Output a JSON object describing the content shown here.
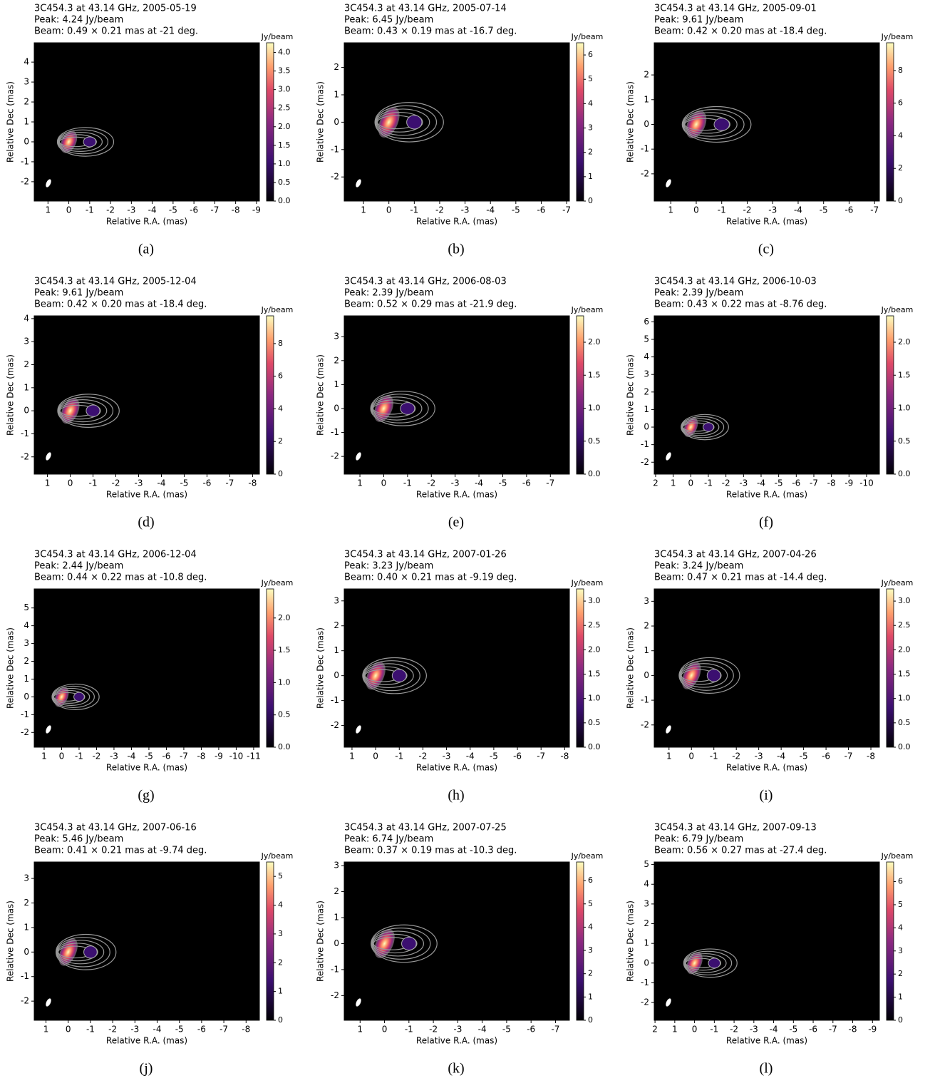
{
  "chart_data": [
    {
      "type": "image",
      "title": "3C454.3 at 43.14 GHz, 2005-05-19",
      "subtitle": "Peak: 4.24 Jy/beam",
      "beam": "Beam: 0.49 × 0.21 mas at -21 deg.",
      "caption": "(a)",
      "xlabel": "Relative R.A. (mas)",
      "ylabel": "Relative Dec (mas)",
      "xlim": [
        1.66,
        -9.14
      ],
      "ylim": [
        -2.97,
        4.97
      ],
      "xticks": [
        1,
        0,
        -1,
        -2,
        -3,
        -4,
        -5,
        -6,
        -7,
        -8,
        -9
      ],
      "yticks": [
        -2,
        -1,
        0,
        1,
        2,
        3,
        4
      ],
      "colorbar": {
        "label": "Jy/beam",
        "lim": [
          0,
          4.26
        ],
        "ticks": [
          {
            "value": 0,
            "label": "0.0"
          },
          0.5,
          {
            "value": 1,
            "label": "1.0"
          },
          1.5,
          {
            "value": 2,
            "label": "2.0"
          },
          2.5,
          {
            "value": 3,
            "label": "3.0"
          },
          3.5,
          {
            "value": 4,
            "label": "4.0"
          }
        ]
      }
    },
    {
      "type": "image",
      "title": "3C454.3 at 43.14 GHz, 2005-07-14",
      "subtitle": "Peak: 6.45 Jy/beam",
      "beam": "Beam: 0.43 × 0.19 mas at -16.7 deg.",
      "caption": "(b)",
      "xlabel": "Relative R.A. (mas)",
      "ylabel": "Relative Dec (mas)",
      "xlim": [
        1.76,
        -7.11
      ],
      "ylim": [
        -2.88,
        2.9
      ],
      "xticks": [
        1,
        0,
        -1,
        -2,
        -3,
        -4,
        -5,
        -6,
        -7
      ],
      "yticks": [
        -2,
        -1,
        0,
        1,
        2
      ],
      "colorbar": {
        "label": "Jy/beam",
        "lim": [
          0,
          6.5
        ],
        "ticks": [
          0,
          1,
          2,
          3,
          4,
          5,
          6
        ]
      }
    },
    {
      "type": "image",
      "title": "3C454.3 at 43.14 GHz, 2005-09-01",
      "subtitle": "Peak: 9.61 Jy/beam",
      "beam": "Beam: 0.42 × 0.20 mas at -18.4 deg.",
      "caption": "(c)",
      "xlabel": "Relative R.A. (mas)",
      "ylabel": "Relative Dec (mas)",
      "xlim": [
        1.65,
        -7.19
      ],
      "ylim": [
        -3.1,
        3.3
      ],
      "xticks": [
        1,
        0,
        -1,
        -2,
        -3,
        -4,
        -5,
        -6,
        -7
      ],
      "yticks": [
        -2,
        -1,
        0,
        1,
        2
      ],
      "colorbar": {
        "label": "Jy/beam",
        "lim": [
          0,
          9.7
        ],
        "ticks": [
          0,
          2,
          4,
          6,
          8
        ]
      }
    },
    {
      "type": "image",
      "title": "3C454.3 at 43.14 GHz, 2005-12-04",
      "subtitle": "Peak: 9.61 Jy/beam",
      "beam": "Beam: 0.42 × 0.20 mas at -18.4 deg.",
      "caption": "(d)",
      "xlabel": "Relative R.A. (mas)",
      "ylabel": "Relative Dec (mas)",
      "xlim": [
        1.58,
        -8.3
      ],
      "ylim": [
        -2.75,
        4.12
      ],
      "xticks": [
        1,
        0,
        -1,
        -2,
        -3,
        -4,
        -5,
        -6,
        -7,
        -8
      ],
      "yticks": [
        -2,
        -1,
        0,
        1,
        2,
        3,
        4
      ],
      "colorbar": {
        "label": "Jy/beam",
        "lim": [
          0,
          9.7
        ],
        "ticks": [
          0,
          2,
          4,
          6,
          8
        ]
      }
    },
    {
      "type": "image",
      "title": "3C454.3 at 43.14 GHz, 2006-08-03",
      "subtitle": "Peak: 2.39 Jy/beam",
      "beam": "Beam: 0.52 × 0.29 mas at -21.9 deg.",
      "caption": "(e)",
      "xlabel": "Relative R.A. (mas)",
      "ylabel": "Relative Dec (mas)",
      "xlim": [
        1.66,
        -7.8
      ],
      "ylim": [
        -2.74,
        3.87
      ],
      "xticks": [
        1,
        0,
        -1,
        -2,
        -3,
        -4,
        -5,
        -6,
        -7
      ],
      "yticks": [
        -2,
        -1,
        0,
        1,
        2,
        3
      ],
      "colorbar": {
        "label": "Jy/beam",
        "lim": [
          0,
          2.4
        ],
        "ticks": [
          {
            "value": 0,
            "label": "0.0"
          },
          0.5,
          {
            "value": 1,
            "label": "1.0"
          },
          1.5,
          {
            "value": 2,
            "label": "2.0"
          }
        ]
      }
    },
    {
      "type": "image",
      "title": "3C454.3 at 43.14 GHz, 2006-10-03",
      "subtitle": "Peak: 2.39 Jy/beam",
      "beam": "Beam: 0.43 × 0.22 mas at -8.76 deg.",
      "caption": "(f)",
      "xlabel": "Relative R.A. (mas)",
      "ylabel": "Relative Dec (mas)",
      "xlim": [
        2.08,
        -10.73
      ],
      "ylim": [
        -2.68,
        6.34
      ],
      "xticks": [
        2,
        1,
        0,
        -1,
        -2,
        -3,
        -4,
        -5,
        -6,
        -7,
        -8,
        -9,
        -10
      ],
      "yticks": [
        -2,
        -1,
        0,
        1,
        2,
        3,
        4,
        5,
        6
      ],
      "colorbar": {
        "label": "Jy/beam",
        "lim": [
          0,
          2.4
        ],
        "ticks": [
          {
            "value": 0,
            "label": "0.0"
          },
          0.5,
          {
            "value": 1,
            "label": "1.0"
          },
          1.5,
          {
            "value": 2,
            "label": "2.0"
          }
        ]
      }
    },
    {
      "type": "image",
      "title": "3C454.3 at 43.14 GHz, 2006-12-04",
      "subtitle": "Peak: 2.44 Jy/beam",
      "beam": "Beam: 0.44 × 0.22 mas at -10.8 deg.",
      "caption": "(g)",
      "xlabel": "Relative R.A. (mas)",
      "ylabel": "Relative Dec (mas)",
      "xlim": [
        1.57,
        -11.33
      ],
      "ylim": [
        -2.83,
        6.07
      ],
      "xticks": [
        1,
        0,
        -1,
        -2,
        -3,
        -4,
        -5,
        -6,
        -7,
        -8,
        -9,
        -10,
        -11
      ],
      "yticks": [
        -2,
        -1,
        0,
        1,
        2,
        3,
        4,
        5
      ],
      "colorbar": {
        "label": "Jy/beam",
        "lim": [
          0,
          2.45
        ],
        "ticks": [
          {
            "value": 0,
            "label": "0.0"
          },
          0.5,
          {
            "value": 1,
            "label": "1.0"
          },
          1.5,
          {
            "value": 2,
            "label": "2.0"
          }
        ]
      }
    },
    {
      "type": "image",
      "title": "3C454.3 at 43.14 GHz, 2007-01-26",
      "subtitle": "Peak: 3.23 Jy/beam",
      "beam": "Beam: 0.40 × 0.21 mas at -9.19 deg.",
      "caption": "(h)",
      "xlabel": "Relative R.A. (mas)",
      "ylabel": "Relative Dec (mas)",
      "xlim": [
        1.33,
        -8.2
      ],
      "ylim": [
        -2.87,
        3.48
      ],
      "xticks": [
        1,
        0,
        -1,
        -2,
        -3,
        -4,
        -5,
        -6,
        -7,
        -8
      ],
      "yticks": [
        -2,
        -1,
        0,
        1,
        2,
        3
      ],
      "colorbar": {
        "label": "Jy/beam",
        "lim": [
          0,
          3.25
        ],
        "ticks": [
          {
            "value": 0,
            "label": "0.0"
          },
          0.5,
          {
            "value": 1,
            "label": "1.0"
          },
          1.5,
          {
            "value": 2,
            "label": "2.0"
          },
          2.5,
          {
            "value": 3,
            "label": "3.0"
          }
        ]
      }
    },
    {
      "type": "image",
      "title": "3C454.3 at 43.14 GHz, 2007-04-26",
      "subtitle": "Peak: 3.24 Jy/beam",
      "beam": "Beam: 0.47 × 0.21 mas at -14.4 deg.",
      "caption": "(i)",
      "xlabel": "Relative R.A. (mas)",
      "ylabel": "Relative Dec (mas)",
      "xlim": [
        1.66,
        -8.38
      ],
      "ylim": [
        -2.9,
        3.5
      ],
      "xticks": [
        1,
        0,
        -1,
        -2,
        -3,
        -4,
        -5,
        -6,
        -7,
        -8
      ],
      "yticks": [
        -2,
        -1,
        0,
        1,
        2,
        3
      ],
      "colorbar": {
        "label": "Jy/beam",
        "lim": [
          0,
          3.25
        ],
        "ticks": [
          {
            "value": 0,
            "label": "0.0"
          },
          0.5,
          {
            "value": 1,
            "label": "1.0"
          },
          1.5,
          {
            "value": 2,
            "label": "2.0"
          },
          2.5,
          {
            "value": 3,
            "label": "3.0"
          }
        ]
      }
    },
    {
      "type": "image",
      "title": "3C454.3 at 43.14 GHz, 2007-06-16",
      "subtitle": "Peak: 5.46 Jy/beam",
      "beam": "Beam: 0.41 × 0.21 mas at -9.74 deg.",
      "caption": "(j)",
      "xlabel": "Relative R.A. (mas)",
      "ylabel": "Relative Dec (mas)",
      "xlim": [
        1.53,
        -8.6
      ],
      "ylim": [
        -2.78,
        3.67
      ],
      "xticks": [
        1,
        0,
        -1,
        -2,
        -3,
        -4,
        -5,
        -6,
        -7,
        -8
      ],
      "yticks": [
        -2,
        -1,
        0,
        1,
        2,
        3
      ],
      "colorbar": {
        "label": "Jy/beam",
        "lim": [
          0,
          5.5
        ],
        "ticks": [
          0,
          1,
          2,
          3,
          4,
          5
        ]
      }
    },
    {
      "type": "image",
      "title": "3C454.3 at 43.14 GHz, 2007-07-25",
      "subtitle": "Peak: 6.74 Jy/beam",
      "beam": "Beam: 0.37 × 0.19 mas at -10.3 deg.",
      "caption": "(k)",
      "xlabel": "Relative R.A. (mas)",
      "ylabel": "Relative Dec (mas)",
      "xlim": [
        1.65,
        -7.57
      ],
      "ylim": [
        -2.95,
        3.14
      ],
      "xticks": [
        1,
        0,
        -1,
        -2,
        -3,
        -4,
        -5,
        -6,
        -7
      ],
      "yticks": [
        -2,
        -1,
        0,
        1,
        2,
        3
      ],
      "colorbar": {
        "label": "Jy/beam",
        "lim": [
          0,
          6.8
        ],
        "ticks": [
          0,
          1,
          2,
          3,
          4,
          5,
          6
        ]
      }
    },
    {
      "type": "image",
      "title": "3C454.3 at 43.14 GHz, 2007-09-13",
      "subtitle": "Peak: 6.79 Jy/beam",
      "beam": "Beam: 0.56 × 0.27 mas at -27.4 deg.",
      "caption": "(l)",
      "xlabel": "Relative R.A. (mas)",
      "ylabel": "Relative Dec (mas)",
      "xlim": [
        2.04,
        -9.35
      ],
      "ylim": [
        -2.9,
        5.13
      ],
      "xticks": [
        2,
        1,
        0,
        -1,
        -2,
        -3,
        -4,
        -5,
        -6,
        -7,
        -8,
        -9
      ],
      "yticks": [
        -2,
        -1,
        0,
        1,
        2,
        3,
        4,
        5
      ],
      "colorbar": {
        "label": "Jy/beam",
        "lim": [
          0,
          6.85
        ],
        "ticks": [
          0,
          1,
          2,
          3,
          4,
          5,
          6
        ]
      }
    }
  ]
}
